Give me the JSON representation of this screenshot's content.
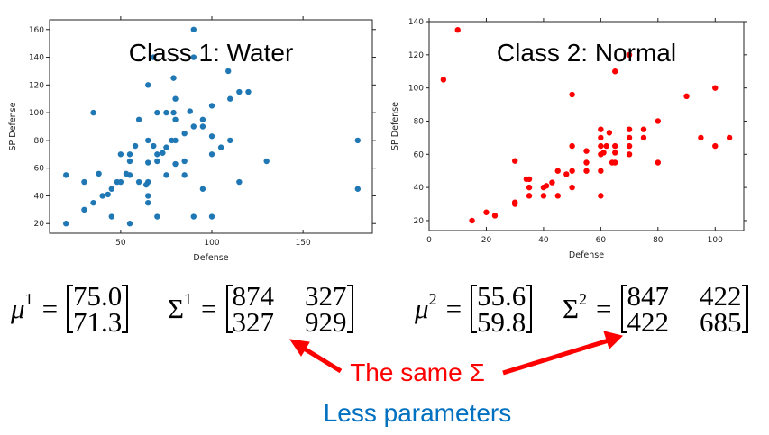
{
  "chart_data": [
    {
      "type": "scatter",
      "title": "Class 1: Water",
      "xlabel": "Defense",
      "ylabel": "SP Defense",
      "xlim": [
        11,
        188
      ],
      "ylim": [
        13,
        167
      ],
      "xticks": [
        50,
        100,
        150
      ],
      "yticks": [
        20,
        40,
        60,
        80,
        100,
        120,
        140,
        160
      ],
      "color": "#1f77b4",
      "points": [
        [
          90,
          160
        ],
        [
          90,
          140
        ],
        [
          68,
          140
        ],
        [
          109,
          130
        ],
        [
          79,
          125
        ],
        [
          65,
          120
        ],
        [
          115,
          115
        ],
        [
          120,
          115
        ],
        [
          80,
          110
        ],
        [
          110,
          110
        ],
        [
          100,
          105
        ],
        [
          35,
          100
        ],
        [
          70,
          100
        ],
        [
          75,
          100
        ],
        [
          79,
          100
        ],
        [
          88,
          101
        ],
        [
          60,
          95
        ],
        [
          80,
          95
        ],
        [
          95,
          95
        ],
        [
          90,
          90
        ],
        [
          95,
          90
        ],
        [
          85,
          85
        ],
        [
          100,
          83
        ],
        [
          65,
          80
        ],
        [
          78,
          80
        ],
        [
          80,
          80
        ],
        [
          110,
          80
        ],
        [
          180,
          80
        ],
        [
          58,
          76
        ],
        [
          68,
          76
        ],
        [
          75,
          75
        ],
        [
          105,
          75
        ],
        [
          50,
          70
        ],
        [
          55,
          70
        ],
        [
          70,
          70
        ],
        [
          73,
          71
        ],
        [
          100,
          70
        ],
        [
          55,
          65
        ],
        [
          70,
          65
        ],
        [
          85,
          65
        ],
        [
          130,
          65
        ],
        [
          65,
          64
        ],
        [
          80,
          63
        ],
        [
          20,
          55
        ],
        [
          38,
          56
        ],
        [
          53,
          56
        ],
        [
          55,
          55
        ],
        [
          75,
          55
        ],
        [
          85,
          55
        ],
        [
          30,
          50
        ],
        [
          48,
          50
        ],
        [
          50,
          50
        ],
        [
          60,
          50
        ],
        [
          65,
          50
        ],
        [
          115,
          50
        ],
        [
          64,
          48
        ],
        [
          45,
          45
        ],
        [
          95,
          45
        ],
        [
          180,
          45
        ],
        [
          40,
          40
        ],
        [
          43,
          41
        ],
        [
          65,
          40
        ],
        [
          35,
          35
        ],
        [
          65,
          35
        ],
        [
          30,
          30
        ],
        [
          45,
          25
        ],
        [
          70,
          25
        ],
        [
          90,
          25
        ],
        [
          100,
          25
        ],
        [
          20,
          20
        ],
        [
          55,
          20
        ]
      ]
    },
    {
      "type": "scatter",
      "title": "Class 2: Normal",
      "xlabel": "Defense",
      "ylabel": "SP Defense",
      "xlim": [
        0,
        110
      ],
      "ylim": [
        14,
        140
      ],
      "xticks": [
        0,
        20,
        40,
        60,
        80,
        100
      ],
      "yticks": [
        20,
        40,
        60,
        80,
        100,
        120,
        140
      ],
      "color": "#ff0000",
      "points": [
        [
          10,
          135
        ],
        [
          5,
          105
        ],
        [
          70,
          120
        ],
        [
          65,
          110
        ],
        [
          50,
          96
        ],
        [
          90,
          95
        ],
        [
          100,
          100
        ],
        [
          80,
          80
        ],
        [
          60,
          75
        ],
        [
          70,
          75
        ],
        [
          75,
          75
        ],
        [
          63,
          73
        ],
        [
          60,
          70
        ],
        [
          70,
          70
        ],
        [
          75,
          70
        ],
        [
          95,
          70
        ],
        [
          105,
          70
        ],
        [
          50,
          65
        ],
        [
          60,
          65
        ],
        [
          62,
          65
        ],
        [
          65,
          65
        ],
        [
          70,
          65
        ],
        [
          100,
          65
        ],
        [
          55,
          62
        ],
        [
          60,
          60
        ],
        [
          61,
          61
        ],
        [
          65,
          61
        ],
        [
          70,
          60
        ],
        [
          30,
          56
        ],
        [
          55,
          55
        ],
        [
          64,
          55
        ],
        [
          65,
          55
        ],
        [
          80,
          55
        ],
        [
          45,
          50
        ],
        [
          50,
          50
        ],
        [
          55,
          50
        ],
        [
          60,
          50
        ],
        [
          48,
          48
        ],
        [
          34,
          45
        ],
        [
          35,
          45
        ],
        [
          43,
          43
        ],
        [
          35,
          40
        ],
        [
          40,
          40
        ],
        [
          41,
          41
        ],
        [
          50,
          40
        ],
        [
          35,
          35
        ],
        [
          40,
          35
        ],
        [
          45,
          35
        ],
        [
          60,
          35
        ],
        [
          30,
          31
        ],
        [
          30,
          30
        ],
        [
          20,
          25
        ],
        [
          23,
          23
        ],
        [
          15,
          20
        ]
      ]
    }
  ],
  "equations": {
    "mu1": {
      "symbol": "μ",
      "sup": "1",
      "eq": "=",
      "values": [
        "75.0",
        "71.3"
      ]
    },
    "sigma1": {
      "symbol": "Σ",
      "sup": "1",
      "eq": "=",
      "values": [
        [
          "874",
          "327"
        ],
        [
          "327",
          "929"
        ]
      ]
    },
    "mu2": {
      "symbol": "μ",
      "sup": "2",
      "eq": "=",
      "values": [
        "55.6",
        "59.8"
      ]
    },
    "sigma2": {
      "symbol": "Σ",
      "sup": "2",
      "eq": "=",
      "values": [
        [
          "847",
          "422"
        ],
        [
          "422",
          "685"
        ]
      ]
    }
  },
  "notes": {
    "same_sigma": "The same Σ",
    "less_params": "Less parameters"
  },
  "colors": {
    "red": "#ff0000",
    "blue": "#0070c0"
  }
}
